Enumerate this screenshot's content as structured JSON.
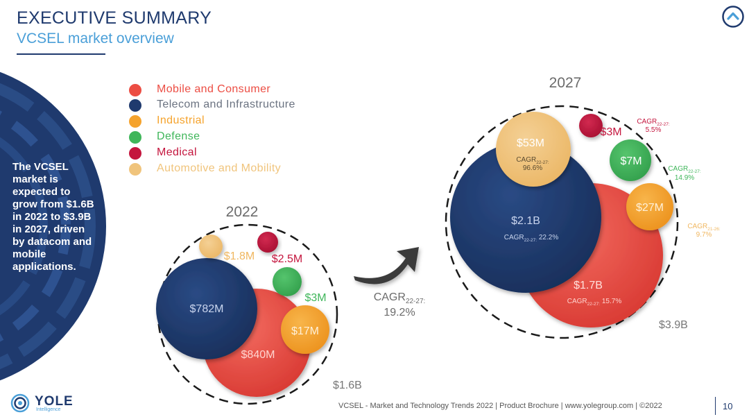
{
  "header": {
    "title": "EXECUTIVE SUMMARY",
    "subtitle": "VCSEL market overview"
  },
  "sidebar": {
    "text": "The VCSEL market is expected to grow from $1.6B in 2022 to $3.9B in 2027, driven by datacom and mobile applications."
  },
  "colors": {
    "mobile": "#ec4d43",
    "telecom": "#1f3a6e",
    "industrial": "#f5a32d",
    "defense": "#3fb65a",
    "medical": "#c4153d",
    "automotive": "#f0c47c",
    "navy": "#1f3a6e",
    "accent": "#4a9fd8"
  },
  "chart_data": {
    "type": "bubble",
    "legend": [
      {
        "key": "mobile",
        "name": "Mobile and Consumer"
      },
      {
        "key": "telecom",
        "name": "Telecom and Infrastructure"
      },
      {
        "key": "industrial",
        "name": "Industrial"
      },
      {
        "key": "defense",
        "name": "Defense"
      },
      {
        "key": "medical",
        "name": "Medical"
      },
      {
        "key": "automotive",
        "name": "Automotive and Mobility"
      }
    ],
    "years": [
      {
        "label": "2022",
        "total": "$1.6B",
        "segments": [
          {
            "key": "mobile",
            "value_label": "$840M"
          },
          {
            "key": "telecom",
            "value_label": "$782M"
          },
          {
            "key": "industrial",
            "value_label": "$17M"
          },
          {
            "key": "defense",
            "value_label": "$3M"
          },
          {
            "key": "medical",
            "value_label": "$2.5M"
          },
          {
            "key": "automotive",
            "value_label": "$1.8M"
          }
        ]
      },
      {
        "label": "2027",
        "total": "$3.9B",
        "segments": [
          {
            "key": "mobile",
            "value_label": "$1.7B",
            "cagr_prefix": "CAGR",
            "cagr_sub": "22-27:",
            "cagr_value": "15.7%"
          },
          {
            "key": "telecom",
            "value_label": "$2.1B",
            "cagr_prefix": "CAGR",
            "cagr_sub": "22-27:",
            "cagr_value": "22.2%"
          },
          {
            "key": "industrial",
            "value_label": "$27M",
            "cagr_prefix": "CAGR",
            "cagr_sub": "21-26:",
            "cagr_value": "9.7%"
          },
          {
            "key": "defense",
            "value_label": "$7M",
            "cagr_prefix": "CAGR",
            "cagr_sub": "22-27:",
            "cagr_value": "14.9%"
          },
          {
            "key": "medical",
            "value_label": "$3M",
            "cagr_prefix": "CAGR",
            "cagr_sub": "22-27:",
            "cagr_value": "5.5%"
          },
          {
            "key": "automotive",
            "value_label": "$53M",
            "cagr_prefix": "CAGR",
            "cagr_sub": "22-27:",
            "cagr_value": "96.6%"
          }
        ]
      }
    ],
    "overall_cagr": {
      "prefix": "CAGR",
      "sub": "22-27:",
      "value": "19.2%"
    }
  },
  "footer": {
    "logo_text": "YOLE",
    "logo_sub": "Intelligence",
    "text": "VCSEL - Market and Technology Trends 2022 | Product Brochure | www.yolegroup.com | ©2022",
    "page": "10"
  }
}
